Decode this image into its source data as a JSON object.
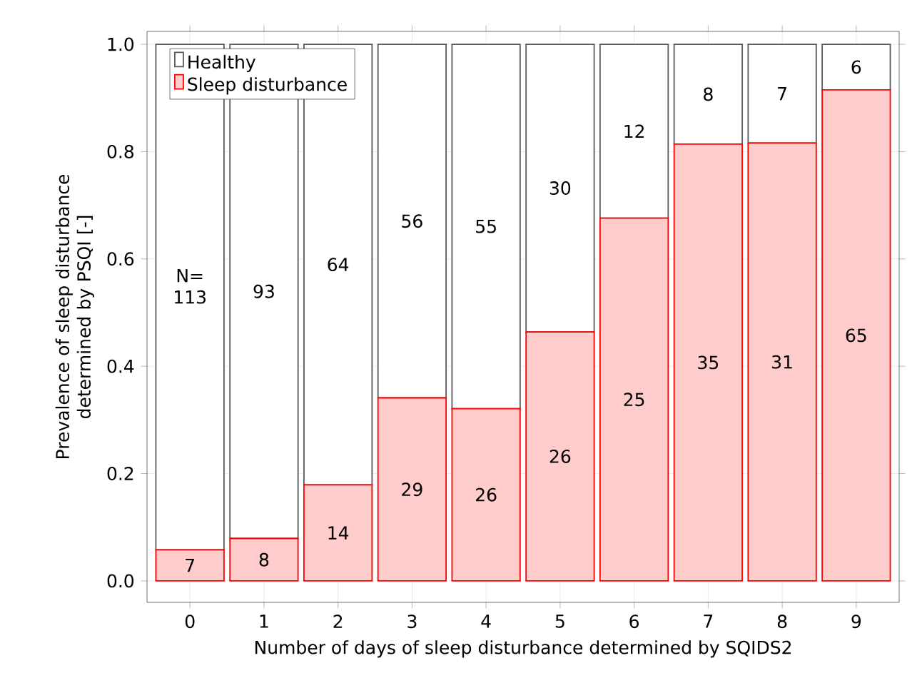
{
  "chart_data": {
    "type": "bar",
    "stacked": true,
    "xlabel": "Number of days of sleep disturbance determined by SQIDS2",
    "ylabel": "Prevalence of sleep disturbance determined by PSQI [-]",
    "categories": [
      "0",
      "1",
      "2",
      "3",
      "4",
      "5",
      "6",
      "7",
      "8",
      "9"
    ],
    "series": [
      {
        "name": "Sleep disturbance",
        "color": "#ffcccc",
        "values": [
          0.058,
          0.079,
          0.179,
          0.341,
          0.321,
          0.464,
          0.676,
          0.814,
          0.816,
          0.915
        ]
      },
      {
        "name": "Healthy",
        "color": "#ffffff",
        "values": [
          0.942,
          0.921,
          0.821,
          0.659,
          0.679,
          0.536,
          0.324,
          0.186,
          0.184,
          0.085
        ]
      }
    ],
    "annotations": [
      "N=",
      "7",
      "8",
      "14",
      "29",
      "26",
      "26",
      "25",
      "35",
      "31",
      "65",
      "113",
      "93",
      "64",
      "56",
      "55",
      "30",
      "12",
      "8",
      "7",
      "6"
    ],
    "ylim": [
      -0.04,
      1.024
    ],
    "yticks": [
      {
        "value": 0,
        "label": "0.0"
      },
      {
        "value": 0.2,
        "label": "0.2"
      },
      {
        "value": 0.4,
        "label": "0.4"
      },
      {
        "value": 0.6,
        "label": "0.6"
      },
      {
        "value": 0.8,
        "label": "0.8"
      },
      {
        "value": 1,
        "label": "1.0"
      }
    ],
    "grid": true,
    "legend": "top left"
  }
}
